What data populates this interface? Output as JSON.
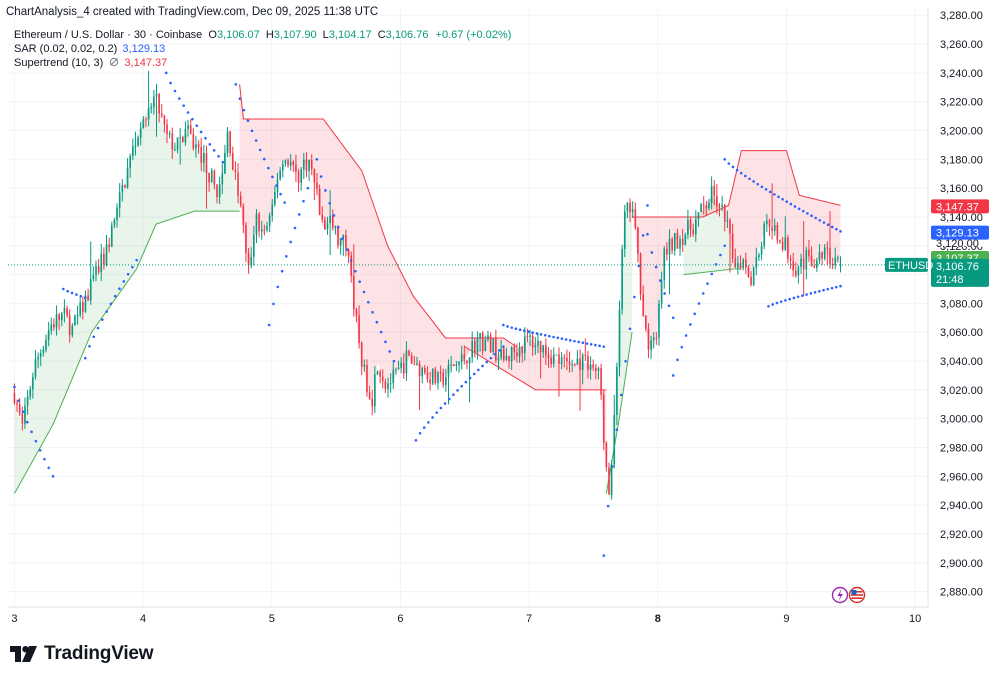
{
  "header": {
    "attribution": "ChartAnalysis_4 created with TradingView.com, Dec 09, 2025 11:38 UTC"
  },
  "legend": {
    "symbol": "Ethereum / U.S. Dollar · 30 · Coinbase",
    "ohlc": {
      "o_label": "O",
      "o": "3,106.07",
      "h_label": "H",
      "h": "3,107.90",
      "l_label": "L",
      "l": "3,104.17",
      "c_label": "C",
      "c": "3,106.76",
      "change": "+0.67 (+0.02%)"
    },
    "sar": {
      "label": "SAR (0.02, 0.02, 0.2)",
      "value": "3,129.13"
    },
    "supertrend": {
      "label": "Supertrend (10, 3)",
      "icon": "hidden-eye-icon",
      "value": "3,147.37"
    }
  },
  "price_tags": {
    "symbol": "ETHUSD",
    "supertrend": "3,147.37",
    "sar": "3,129.13",
    "hidden_behind": "3,120.00",
    "green": "3,107.37",
    "last": "3,106.76",
    "countdown": "21:48"
  },
  "colors": {
    "up": "#089981",
    "down": "#f23645",
    "sar": "#2962ff",
    "st_up_line": "#4caf50",
    "st_down_line": "#f23645",
    "st_up_fill": "rgba(76,175,80,0.12)",
    "st_down_fill": "rgba(242,54,69,0.14)",
    "sar_tag": "#2962ff",
    "st_tag": "#f23645",
    "green_tag": "#4caf50",
    "last_tag": "#089981"
  },
  "chart_data": {
    "type": "candlestick",
    "title": "Ethereum / U.S. Dollar · 30 · Coinbase",
    "interval": "30",
    "y_axis": {
      "ylim": [
        2870,
        3285
      ],
      "ticks": [
        2880,
        2900,
        2920,
        2940,
        2960,
        2980,
        3000,
        3020,
        3040,
        3060,
        3080,
        3100,
        3120,
        3140,
        3160,
        3180,
        3200,
        3220,
        3240,
        3260,
        3280
      ],
      "tick_labels": [
        "2,880.00",
        "2,900.00",
        "2,920.00",
        "2,940.00",
        "2,960.00",
        "2,980.00",
        "3,000.00",
        "3,020.00",
        "3,040.00",
        "3,060.00",
        "3,080.00",
        "3,100.00",
        "3,120.00",
        "3,140.00",
        "3,160.00",
        "3,180.00",
        "3,200.00",
        "3,220.00",
        "3,240.00",
        "3,260.00",
        "3,280.00"
      ]
    },
    "x_axis": {
      "xlim": [
        2.95,
        10.1
      ],
      "ticks": [
        3,
        4,
        5,
        6,
        7,
        8,
        9,
        10
      ],
      "tick_labels": [
        "3",
        "4",
        "5",
        "6",
        "7",
        "8",
        "9",
        "10"
      ],
      "bold": [
        "8"
      ]
    },
    "grid": true,
    "legend_position": "top-left",
    "path": [
      [
        3.0,
        3018
      ],
      [
        3.06,
        2993
      ],
      [
        3.15,
        3035
      ],
      [
        3.28,
        3065
      ],
      [
        3.38,
        3072
      ],
      [
        3.45,
        3062
      ],
      [
        3.55,
        3082
      ],
      [
        3.62,
        3098
      ],
      [
        3.7,
        3112
      ],
      [
        3.8,
        3145
      ],
      [
        3.9,
        3180
      ],
      [
        3.96,
        3200
      ],
      [
        4.03,
        3215
      ],
      [
        4.1,
        3222
      ],
      [
        4.18,
        3195
      ],
      [
        4.26,
        3188
      ],
      [
        4.33,
        3200
      ],
      [
        4.4,
        3190
      ],
      [
        4.46,
        3182
      ],
      [
        4.55,
        3162
      ],
      [
        4.6,
        3158
      ],
      [
        4.66,
        3200
      ],
      [
        4.7,
        3175
      ],
      [
        4.76,
        3145
      ],
      [
        4.8,
        3115
      ],
      [
        4.83,
        3098
      ],
      [
        4.87,
        3140
      ],
      [
        4.93,
        3128
      ],
      [
        5.0,
        3140
      ],
      [
        5.05,
        3172
      ],
      [
        5.12,
        3182
      ],
      [
        5.2,
        3168
      ],
      [
        5.28,
        3180
      ],
      [
        5.34,
        3162
      ],
      [
        5.4,
        3130
      ],
      [
        5.45,
        3140
      ],
      [
        5.52,
        3122
      ],
      [
        5.6,
        3120
      ],
      [
        5.64,
        3078
      ],
      [
        5.68,
        3052
      ],
      [
        5.72,
        3030
      ],
      [
        5.78,
        3015
      ],
      [
        5.82,
        3040
      ],
      [
        5.88,
        3025
      ],
      [
        5.96,
        3028
      ],
      [
        6.05,
        3042
      ],
      [
        6.12,
        3038
      ],
      [
        6.2,
        3032
      ],
      [
        6.3,
        3025
      ],
      [
        6.4,
        3035
      ],
      [
        6.5,
        3042
      ],
      [
        6.6,
        3055
      ],
      [
        6.7,
        3052
      ],
      [
        6.8,
        3040
      ],
      [
        6.9,
        3048
      ],
      [
        7.0,
        3055
      ],
      [
        7.1,
        3050
      ],
      [
        7.2,
        3042
      ],
      [
        7.3,
        3036
      ],
      [
        7.4,
        3040
      ],
      [
        7.5,
        3036
      ],
      [
        7.55,
        3028
      ],
      [
        7.6,
        2962
      ],
      [
        7.63,
        2940
      ],
      [
        7.66,
        3000
      ],
      [
        7.7,
        3075
      ],
      [
        7.74,
        3140
      ],
      [
        7.8,
        3148
      ],
      [
        7.86,
        3098
      ],
      [
        7.92,
        3050
      ],
      [
        7.96,
        3048
      ],
      [
        8.0,
        3065
      ],
      [
        8.05,
        3115
      ],
      [
        8.12,
        3122
      ],
      [
        8.2,
        3128
      ],
      [
        8.28,
        3135
      ],
      [
        8.35,
        3145
      ],
      [
        8.42,
        3155
      ],
      [
        8.48,
        3148
      ],
      [
        8.54,
        3133
      ],
      [
        8.6,
        3108
      ],
      [
        8.66,
        3112
      ],
      [
        8.72,
        3098
      ],
      [
        8.8,
        3122
      ],
      [
        8.86,
        3140
      ],
      [
        8.92,
        3130
      ],
      [
        9.0,
        3118
      ],
      [
        9.08,
        3105
      ],
      [
        9.16,
        3112
      ],
      [
        9.22,
        3108
      ],
      [
        9.3,
        3115
      ],
      [
        9.36,
        3110
      ],
      [
        9.42,
        3106.76
      ]
    ],
    "sar_segments": [
      [
        [
          3.0,
          3022
        ],
        [
          3.3,
          2960
        ]
      ],
      [
        [
          3.38,
          3090
        ],
        [
          3.55,
          3084
        ]
      ],
      [
        [
          3.55,
          3042
        ],
        [
          3.95,
          3110
        ]
      ],
      [
        [
          4.18,
          3240
        ],
        [
          4.62,
          3178
        ]
      ],
      [
        [
          4.72,
          3232
        ],
        [
          5.1,
          3150
        ]
      ],
      [
        [
          4.98,
          3065
        ],
        [
          5.28,
          3160
        ]
      ],
      [
        [
          5.35,
          3180
        ],
        [
          5.95,
          3040
        ]
      ],
      [
        [
          6.12,
          2985
        ],
        [
          6.8,
          3050
        ]
      ],
      [
        [
          6.8,
          3065
        ],
        [
          7.58,
          3050
        ]
      ],
      [
        [
          7.58,
          2905
        ],
        [
          7.92,
          3148
        ]
      ],
      [
        [
          7.92,
          3128
        ],
        [
          8.12,
          3070
        ]
      ],
      [
        [
          8.12,
          3030
        ],
        [
          8.52,
          3120
        ]
      ],
      [
        [
          8.52,
          3180
        ],
        [
          9.42,
          3130
        ]
      ],
      [
        [
          8.86,
          3078
        ],
        [
          9.42,
          3092
        ]
      ]
    ],
    "supertrend_up_segments": [
      [
        [
          3.0,
          2948
        ],
        [
          3.3,
          2996
        ],
        [
          3.6,
          3060
        ],
        [
          3.95,
          3104
        ],
        [
          4.1,
          3135
        ],
        [
          4.4,
          3144
        ],
        [
          4.75,
          3144
        ]
      ],
      [
        [
          7.6,
          2948
        ],
        [
          7.7,
          3000
        ],
        [
          7.78,
          3048
        ],
        [
          7.8,
          3060
        ]
      ],
      [
        [
          8.2,
          3100
        ],
        [
          8.6,
          3104
        ],
        [
          8.65,
          3104
        ]
      ]
    ],
    "supertrend_down_segments": [
      [
        [
          4.75,
          3232
        ],
        [
          4.78,
          3208
        ],
        [
          5.4,
          3208
        ],
        [
          5.7,
          3172
        ],
        [
          5.9,
          3120
        ],
        [
          6.1,
          3085
        ],
        [
          6.35,
          3056
        ],
        [
          6.8,
          3056
        ],
        [
          6.9,
          3050
        ]
      ],
      [
        [
          6.5,
          3050
        ],
        [
          7.05,
          3020
        ],
        [
          7.6,
          3020
        ]
      ],
      [
        [
          7.8,
          3140
        ],
        [
          8.35,
          3140
        ],
        [
          8.55,
          3148
        ],
        [
          8.65,
          3186
        ],
        [
          9.0,
          3186
        ],
        [
          9.1,
          3155
        ],
        [
          9.42,
          3148
        ]
      ]
    ]
  }
}
